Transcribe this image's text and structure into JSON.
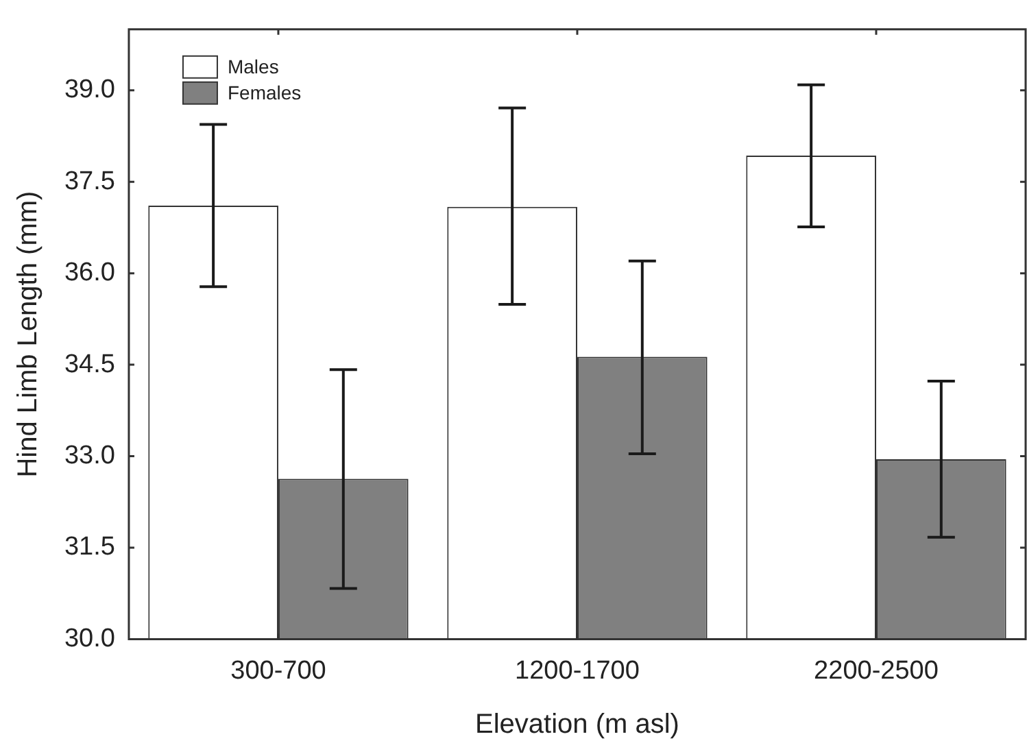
{
  "chart_data": {
    "type": "bar",
    "xlabel": "Elevation (m asl)",
    "ylabel": "Hind Limb Length (mm)",
    "categories": [
      "300-700",
      "1200-1700",
      "2200-2500"
    ],
    "series": [
      {
        "name": "Males",
        "color": "#ffffff",
        "values": [
          37.11,
          37.09,
          37.93
        ],
        "errors": [
          [
            35.78,
            38.44
          ],
          [
            35.49,
            38.71
          ],
          [
            36.76,
            39.09
          ]
        ]
      },
      {
        "name": "Females",
        "color": "#808080",
        "values": [
          32.63,
          34.63,
          32.95
        ],
        "errors": [
          [
            30.83,
            34.42
          ],
          [
            33.04,
            36.2
          ],
          [
            31.67,
            34.23
          ]
        ]
      }
    ],
    "ylim": [
      30,
      40
    ],
    "yticks": [
      {
        "value": 30,
        "label": "30.0"
      },
      {
        "value": 31.5,
        "label": "31.5"
      },
      {
        "value": 33,
        "label": "33.0"
      },
      {
        "value": 34.5,
        "label": "34.5"
      },
      {
        "value": 36,
        "label": "36.0"
      },
      {
        "value": 37.5,
        "label": "37.5"
      },
      {
        "value": 39,
        "label": "39.0"
      }
    ],
    "grid": false,
    "legend": "top left"
  }
}
